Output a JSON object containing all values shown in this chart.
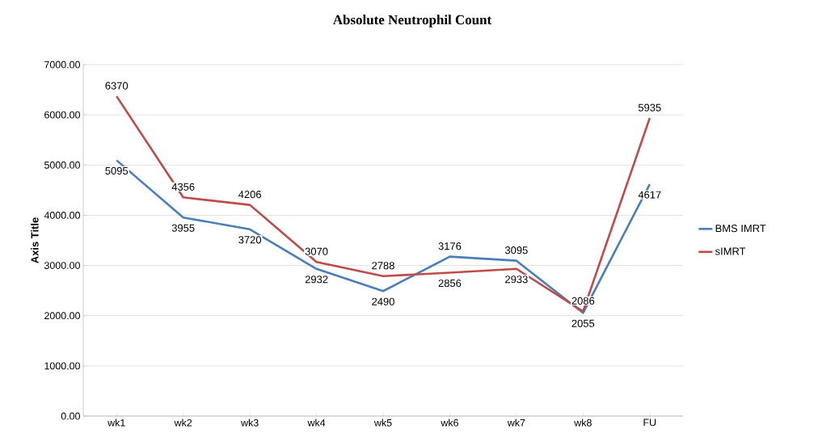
{
  "chart_data": {
    "type": "line",
    "title": "Absolute Neutrophil Count",
    "ylabel": "Axis Title",
    "categories": [
      "wk1",
      "wk2",
      "wk3",
      "wk4",
      "wk5",
      "wk6",
      "wk7",
      "wk8",
      "FU"
    ],
    "series": [
      {
        "name": "BMS IMRT",
        "color": "#4a7ebb",
        "values": [
          5095,
          3955,
          3720,
          2932,
          2490,
          3176,
          3095,
          2055,
          4617
        ]
      },
      {
        "name": "sIMRT",
        "color": "#be4b48",
        "values": [
          6370,
          4356,
          4206,
          3070,
          2788,
          2856,
          2933,
          2086,
          5935
        ]
      }
    ],
    "ylim": [
      0,
      7000
    ],
    "yticks": [
      {
        "value": 0,
        "label": "0.00"
      },
      {
        "value": 1000,
        "label": "1000.00"
      },
      {
        "value": 2000,
        "label": "2000.00"
      },
      {
        "value": 3000,
        "label": "3000.00"
      },
      {
        "value": 4000,
        "label": "4000.00"
      },
      {
        "value": 5000,
        "label": "5000.00"
      },
      {
        "value": 6000,
        "label": "6000.00"
      },
      {
        "value": 7000,
        "label": "7000.00"
      }
    ],
    "grid": "y",
    "legend": "right",
    "data_labels": true,
    "marker": "none",
    "line_style": "solid"
  }
}
